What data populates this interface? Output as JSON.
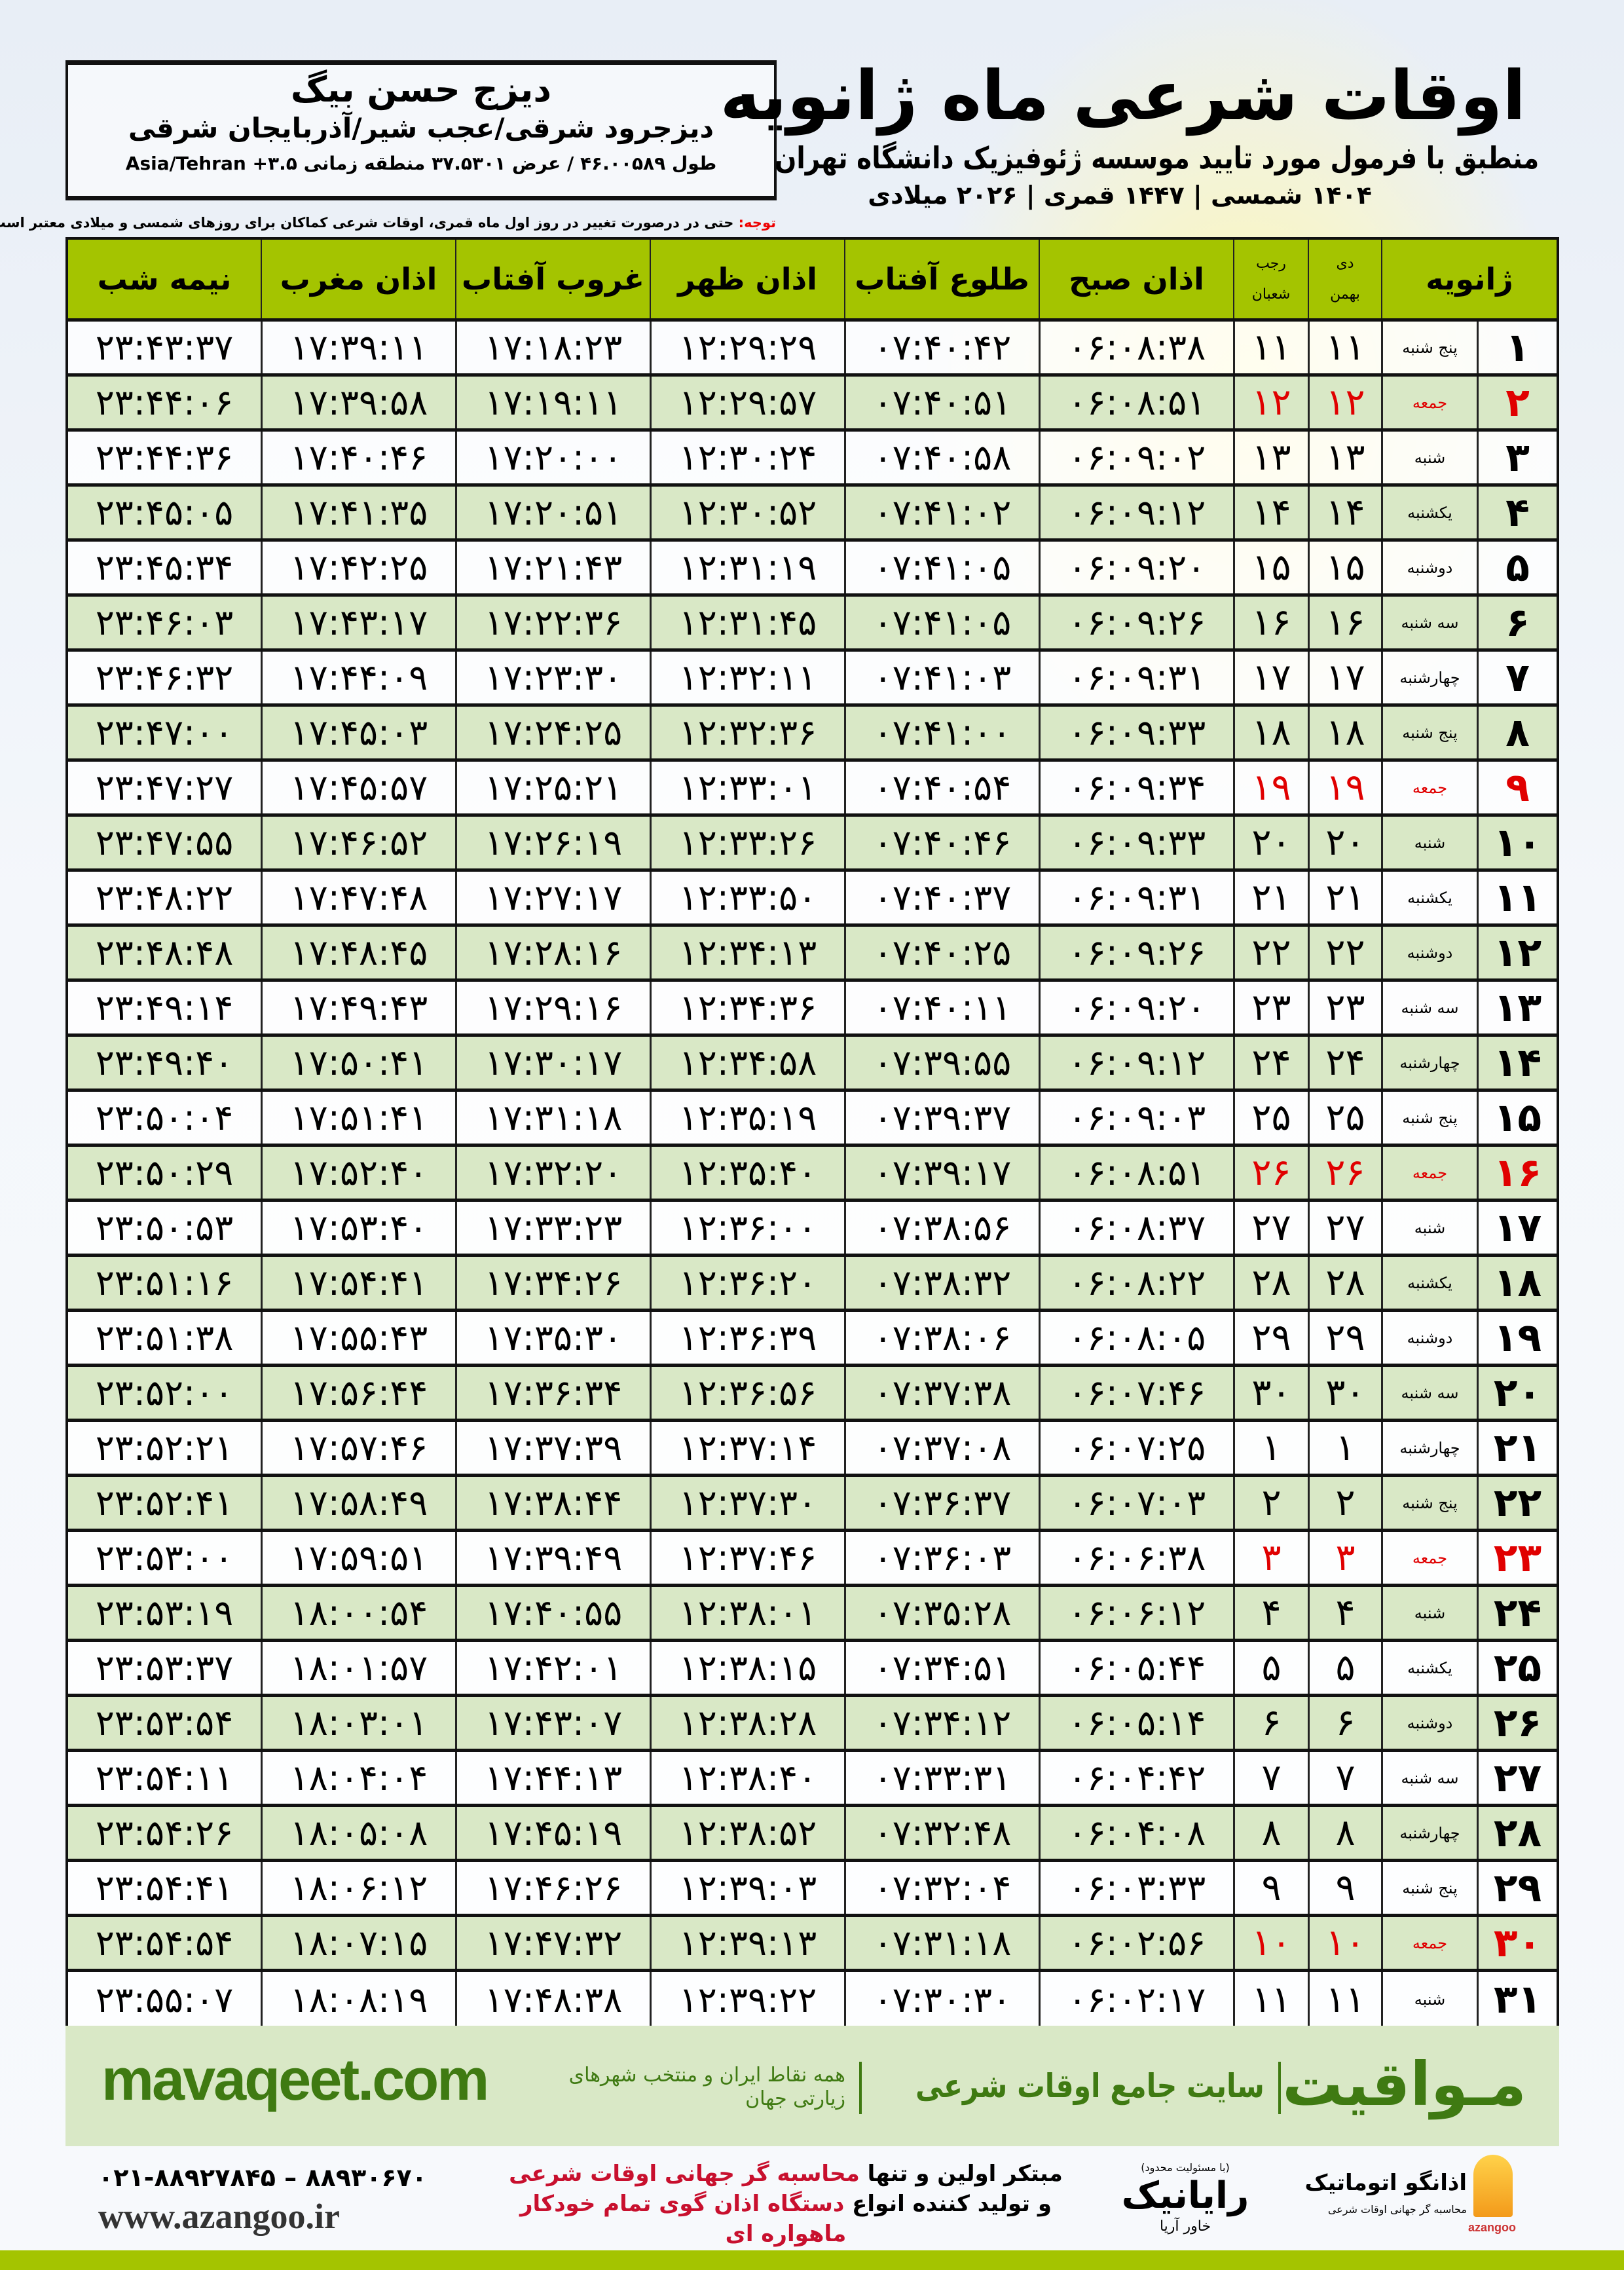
{
  "location": {
    "name": "دیزج حسن بیگ",
    "region": "دیزجرود شرقی/عجب شیر/آذربایجان شرقی",
    "coords": "طول ۴۶.۰۰۵۸۹ / عرض ۳۷.۵۳۰۱ منطقه زمانی ۳.۵+ Asia/Tehran"
  },
  "header": {
    "title": "اوقات شرعی ماه ژانویه",
    "subtitle": "منطبق با فرمول مورد تایید موسسه ژئوفیزیک دانشگاه تهران",
    "years": "۱۴۰۴ شمسی | ۱۴۴۷ قمری | ۲۰۲۶ میلادی"
  },
  "note": {
    "label": "توجه:",
    "text": " حتی در درصورت تغییر در روز اول ماه قمری، اوقات شرعی کماکان برای روزهای شمسی و میلادی معتبر است."
  },
  "columns": {
    "day": "ژانویه",
    "shamsi_top": "دی",
    "shamsi_bottom": "بهمن",
    "qamari_top": "رجب",
    "qamari_bottom": "شعبان",
    "fajr": "اذان صبح",
    "sunrise": "طلوع آفتاب",
    "dhuhr": "اذان ظهر",
    "sunset": "غروب آفتاب",
    "maghrib": "اذان مغرب",
    "midnight": "نیمه شب"
  },
  "colors": {
    "header_green": "#a4c400",
    "row_green": "#d9e8c6",
    "friday_red": "#e00000",
    "brand_green": "#3f7a12"
  },
  "rows": [
    {
      "day": "۱",
      "weekday": "پنج شنبه",
      "shamsi": "۱۱",
      "qamari": "۱۱",
      "fajr": "۰۶:۰۸:۳۸",
      "sunrise": "۰۷:۴۰:۴۲",
      "dhuhr": "۱۲:۲۹:۲۹",
      "sunset": "۱۷:۱۸:۲۳",
      "maghrib": "۱۷:۳۹:۱۱",
      "midnight": "۲۳:۴۳:۳۷",
      "holiday": false
    },
    {
      "day": "۲",
      "weekday": "جمعه",
      "shamsi": "۱۲",
      "qamari": "۱۲",
      "fajr": "۰۶:۰۸:۵۱",
      "sunrise": "۰۷:۴۰:۵۱",
      "dhuhr": "۱۲:۲۹:۵۷",
      "sunset": "۱۷:۱۹:۱۱",
      "maghrib": "۱۷:۳۹:۵۸",
      "midnight": "۲۳:۴۴:۰۶",
      "holiday": true
    },
    {
      "day": "۳",
      "weekday": "شنبه",
      "shamsi": "۱۳",
      "qamari": "۱۳",
      "fajr": "۰۶:۰۹:۰۲",
      "sunrise": "۰۷:۴۰:۵۸",
      "dhuhr": "۱۲:۳۰:۲۴",
      "sunset": "۱۷:۲۰:۰۰",
      "maghrib": "۱۷:۴۰:۴۶",
      "midnight": "۲۳:۴۴:۳۶",
      "holiday": false
    },
    {
      "day": "۴",
      "weekday": "یکشنبه",
      "shamsi": "۱۴",
      "qamari": "۱۴",
      "fajr": "۰۶:۰۹:۱۲",
      "sunrise": "۰۷:۴۱:۰۲",
      "dhuhr": "۱۲:۳۰:۵۲",
      "sunset": "۱۷:۲۰:۵۱",
      "maghrib": "۱۷:۴۱:۳۵",
      "midnight": "۲۳:۴۵:۰۵",
      "holiday": false
    },
    {
      "day": "۵",
      "weekday": "دوشنبه",
      "shamsi": "۱۵",
      "qamari": "۱۵",
      "fajr": "۰۶:۰۹:۲۰",
      "sunrise": "۰۷:۴۱:۰۵",
      "dhuhr": "۱۲:۳۱:۱۹",
      "sunset": "۱۷:۲۱:۴۳",
      "maghrib": "۱۷:۴۲:۲۵",
      "midnight": "۲۳:۴۵:۳۴",
      "holiday": false
    },
    {
      "day": "۶",
      "weekday": "سه شنبه",
      "shamsi": "۱۶",
      "qamari": "۱۶",
      "fajr": "۰۶:۰۹:۲۶",
      "sunrise": "۰۷:۴۱:۰۵",
      "dhuhr": "۱۲:۳۱:۴۵",
      "sunset": "۱۷:۲۲:۳۶",
      "maghrib": "۱۷:۴۳:۱۷",
      "midnight": "۲۳:۴۶:۰۳",
      "holiday": false
    },
    {
      "day": "۷",
      "weekday": "چهارشنبه",
      "shamsi": "۱۷",
      "qamari": "۱۷",
      "fajr": "۰۶:۰۹:۳۱",
      "sunrise": "۰۷:۴۱:۰۳",
      "dhuhr": "۱۲:۳۲:۱۱",
      "sunset": "۱۷:۲۳:۳۰",
      "maghrib": "۱۷:۴۴:۰۹",
      "midnight": "۲۳:۴۶:۳۲",
      "holiday": false
    },
    {
      "day": "۸",
      "weekday": "پنج شنبه",
      "shamsi": "۱۸",
      "qamari": "۱۸",
      "fajr": "۰۶:۰۹:۳۳",
      "sunrise": "۰۷:۴۱:۰۰",
      "dhuhr": "۱۲:۳۲:۳۶",
      "sunset": "۱۷:۲۴:۲۵",
      "maghrib": "۱۷:۴۵:۰۳",
      "midnight": "۲۳:۴۷:۰۰",
      "holiday": false
    },
    {
      "day": "۹",
      "weekday": "جمعه",
      "shamsi": "۱۹",
      "qamari": "۱۹",
      "fajr": "۰۶:۰۹:۳۴",
      "sunrise": "۰۷:۴۰:۵۴",
      "dhuhr": "۱۲:۳۳:۰۱",
      "sunset": "۱۷:۲۵:۲۱",
      "maghrib": "۱۷:۴۵:۵۷",
      "midnight": "۲۳:۴۷:۲۷",
      "holiday": true
    },
    {
      "day": "۱۰",
      "weekday": "شنبه",
      "shamsi": "۲۰",
      "qamari": "۲۰",
      "fajr": "۰۶:۰۹:۳۳",
      "sunrise": "۰۷:۴۰:۴۶",
      "dhuhr": "۱۲:۳۳:۲۶",
      "sunset": "۱۷:۲۶:۱۹",
      "maghrib": "۱۷:۴۶:۵۲",
      "midnight": "۲۳:۴۷:۵۵",
      "holiday": false
    },
    {
      "day": "۱۱",
      "weekday": "یکشنبه",
      "shamsi": "۲۱",
      "qamari": "۲۱",
      "fajr": "۰۶:۰۹:۳۱",
      "sunrise": "۰۷:۴۰:۳۷",
      "dhuhr": "۱۲:۳۳:۵۰",
      "sunset": "۱۷:۲۷:۱۷",
      "maghrib": "۱۷:۴۷:۴۸",
      "midnight": "۲۳:۴۸:۲۲",
      "holiday": false
    },
    {
      "day": "۱۲",
      "weekday": "دوشنبه",
      "shamsi": "۲۲",
      "qamari": "۲۲",
      "fajr": "۰۶:۰۹:۲۶",
      "sunrise": "۰۷:۴۰:۲۵",
      "dhuhr": "۱۲:۳۴:۱۳",
      "sunset": "۱۷:۲۸:۱۶",
      "maghrib": "۱۷:۴۸:۴۵",
      "midnight": "۲۳:۴۸:۴۸",
      "holiday": false
    },
    {
      "day": "۱۳",
      "weekday": "سه شنبه",
      "shamsi": "۲۳",
      "qamari": "۲۳",
      "fajr": "۰۶:۰۹:۲۰",
      "sunrise": "۰۷:۴۰:۱۱",
      "dhuhr": "۱۲:۳۴:۳۶",
      "sunset": "۱۷:۲۹:۱۶",
      "maghrib": "۱۷:۴۹:۴۳",
      "midnight": "۲۳:۴۹:۱۴",
      "holiday": false
    },
    {
      "day": "۱۴",
      "weekday": "چهارشنبه",
      "shamsi": "۲۴",
      "qamari": "۲۴",
      "fajr": "۰۶:۰۹:۱۲",
      "sunrise": "۰۷:۳۹:۵۵",
      "dhuhr": "۱۲:۳۴:۵۸",
      "sunset": "۱۷:۳۰:۱۷",
      "maghrib": "۱۷:۵۰:۴۱",
      "midnight": "۲۳:۴۹:۴۰",
      "holiday": false
    },
    {
      "day": "۱۵",
      "weekday": "پنج شنبه",
      "shamsi": "۲۵",
      "qamari": "۲۵",
      "fajr": "۰۶:۰۹:۰۳",
      "sunrise": "۰۷:۳۹:۳۷",
      "dhuhr": "۱۲:۳۵:۱۹",
      "sunset": "۱۷:۳۱:۱۸",
      "maghrib": "۱۷:۵۱:۴۱",
      "midnight": "۲۳:۵۰:۰۴",
      "holiday": false
    },
    {
      "day": "۱۶",
      "weekday": "جمعه",
      "shamsi": "۲۶",
      "qamari": "۲۶",
      "fajr": "۰۶:۰۸:۵۱",
      "sunrise": "۰۷:۳۹:۱۷",
      "dhuhr": "۱۲:۳۵:۴۰",
      "sunset": "۱۷:۳۲:۲۰",
      "maghrib": "۱۷:۵۲:۴۰",
      "midnight": "۲۳:۵۰:۲۹",
      "holiday": true
    },
    {
      "day": "۱۷",
      "weekday": "شنبه",
      "shamsi": "۲۷",
      "qamari": "۲۷",
      "fajr": "۰۶:۰۸:۳۷",
      "sunrise": "۰۷:۳۸:۵۶",
      "dhuhr": "۱۲:۳۶:۰۰",
      "sunset": "۱۷:۳۳:۲۳",
      "maghrib": "۱۷:۵۳:۴۰",
      "midnight": "۲۳:۵۰:۵۳",
      "holiday": false
    },
    {
      "day": "۱۸",
      "weekday": "یکشنبه",
      "shamsi": "۲۸",
      "qamari": "۲۸",
      "fajr": "۰۶:۰۸:۲۲",
      "sunrise": "۰۷:۳۸:۳۲",
      "dhuhr": "۱۲:۳۶:۲۰",
      "sunset": "۱۷:۳۴:۲۶",
      "maghrib": "۱۷:۵۴:۴۱",
      "midnight": "۲۳:۵۱:۱۶",
      "holiday": false
    },
    {
      "day": "۱۹",
      "weekday": "دوشنبه",
      "shamsi": "۲۹",
      "qamari": "۲۹",
      "fajr": "۰۶:۰۸:۰۵",
      "sunrise": "۰۷:۳۸:۰۶",
      "dhuhr": "۱۲:۳۶:۳۹",
      "sunset": "۱۷:۳۵:۳۰",
      "maghrib": "۱۷:۵۵:۴۳",
      "midnight": "۲۳:۵۱:۳۸",
      "holiday": false
    },
    {
      "day": "۲۰",
      "weekday": "سه شنبه",
      "shamsi": "۳۰",
      "qamari": "۳۰",
      "fajr": "۰۶:۰۷:۴۶",
      "sunrise": "۰۷:۳۷:۳۸",
      "dhuhr": "۱۲:۳۶:۵۶",
      "sunset": "۱۷:۳۶:۳۴",
      "maghrib": "۱۷:۵۶:۴۴",
      "midnight": "۲۳:۵۲:۰۰",
      "holiday": false
    },
    {
      "day": "۲۱",
      "weekday": "چهارشنبه",
      "shamsi": "۱",
      "qamari": "۱",
      "fajr": "۰۶:۰۷:۲۵",
      "sunrise": "۰۷:۳۷:۰۸",
      "dhuhr": "۱۲:۳۷:۱۴",
      "sunset": "۱۷:۳۷:۳۹",
      "maghrib": "۱۷:۵۷:۴۶",
      "midnight": "۲۳:۵۲:۲۱",
      "holiday": false
    },
    {
      "day": "۲۲",
      "weekday": "پنج شنبه",
      "shamsi": "۲",
      "qamari": "۲",
      "fajr": "۰۶:۰۷:۰۳",
      "sunrise": "۰۷:۳۶:۳۷",
      "dhuhr": "۱۲:۳۷:۳۰",
      "sunset": "۱۷:۳۸:۴۴",
      "maghrib": "۱۷:۵۸:۴۹",
      "midnight": "۲۳:۵۲:۴۱",
      "holiday": false
    },
    {
      "day": "۲۳",
      "weekday": "جمعه",
      "shamsi": "۳",
      "qamari": "۳",
      "fajr": "۰۶:۰۶:۳۸",
      "sunrise": "۰۷:۳۶:۰۳",
      "dhuhr": "۱۲:۳۷:۴۶",
      "sunset": "۱۷:۳۹:۴۹",
      "maghrib": "۱۷:۵۹:۵۱",
      "midnight": "۲۳:۵۳:۰۰",
      "holiday": true
    },
    {
      "day": "۲۴",
      "weekday": "شنبه",
      "shamsi": "۴",
      "qamari": "۴",
      "fajr": "۰۶:۰۶:۱۲",
      "sunrise": "۰۷:۳۵:۲۸",
      "dhuhr": "۱۲:۳۸:۰۱",
      "sunset": "۱۷:۴۰:۵۵",
      "maghrib": "۱۸:۰۰:۵۴",
      "midnight": "۲۳:۵۳:۱۹",
      "holiday": false
    },
    {
      "day": "۲۵",
      "weekday": "یکشنبه",
      "shamsi": "۵",
      "qamari": "۵",
      "fajr": "۰۶:۰۵:۴۴",
      "sunrise": "۰۷:۳۴:۵۱",
      "dhuhr": "۱۲:۳۸:۱۵",
      "sunset": "۱۷:۴۲:۰۱",
      "maghrib": "۱۸:۰۱:۵۷",
      "midnight": "۲۳:۵۳:۳۷",
      "holiday": false
    },
    {
      "day": "۲۶",
      "weekday": "دوشنبه",
      "shamsi": "۶",
      "qamari": "۶",
      "fajr": "۰۶:۰۵:۱۴",
      "sunrise": "۰۷:۳۴:۱۲",
      "dhuhr": "۱۲:۳۸:۲۸",
      "sunset": "۱۷:۴۳:۰۷",
      "maghrib": "۱۸:۰۳:۰۱",
      "midnight": "۲۳:۵۳:۵۴",
      "holiday": false
    },
    {
      "day": "۲۷",
      "weekday": "سه شنبه",
      "shamsi": "۷",
      "qamari": "۷",
      "fajr": "۰۶:۰۴:۴۲",
      "sunrise": "۰۷:۳۳:۳۱",
      "dhuhr": "۱۲:۳۸:۴۰",
      "sunset": "۱۷:۴۴:۱۳",
      "maghrib": "۱۸:۰۴:۰۴",
      "midnight": "۲۳:۵۴:۱۱",
      "holiday": false
    },
    {
      "day": "۲۸",
      "weekday": "چهارشنبه",
      "shamsi": "۸",
      "qamari": "۸",
      "fajr": "۰۶:۰۴:۰۸",
      "sunrise": "۰۷:۳۲:۴۸",
      "dhuhr": "۱۲:۳۸:۵۲",
      "sunset": "۱۷:۴۵:۱۹",
      "maghrib": "۱۸:۰۵:۰۸",
      "midnight": "۲۳:۵۴:۲۶",
      "holiday": false
    },
    {
      "day": "۲۹",
      "weekday": "پنج شنبه",
      "shamsi": "۹",
      "qamari": "۹",
      "fajr": "۰۶:۰۳:۳۳",
      "sunrise": "۰۷:۳۲:۰۴",
      "dhuhr": "۱۲:۳۹:۰۳",
      "sunset": "۱۷:۴۶:۲۶",
      "maghrib": "۱۸:۰۶:۱۲",
      "midnight": "۲۳:۵۴:۴۱",
      "holiday": false
    },
    {
      "day": "۳۰",
      "weekday": "جمعه",
      "shamsi": "۱۰",
      "qamari": "۱۰",
      "fajr": "۰۶:۰۲:۵۶",
      "sunrise": "۰۷:۳۱:۱۸",
      "dhuhr": "۱۲:۳۹:۱۳",
      "sunset": "۱۷:۴۷:۳۲",
      "maghrib": "۱۸:۰۷:۱۵",
      "midnight": "۲۳:۵۴:۵۴",
      "holiday": true
    },
    {
      "day": "۳۱",
      "weekday": "شنبه",
      "shamsi": "۱۱",
      "qamari": "۱۱",
      "fajr": "۰۶:۰۲:۱۷",
      "sunrise": "۰۷:۳۰:۳۰",
      "dhuhr": "۱۲:۳۹:۲۲",
      "sunset": "۱۷:۴۸:۳۸",
      "maghrib": "۱۸:۰۸:۱۹",
      "midnight": "۲۳:۵۵:۰۷",
      "holiday": false
    }
  ],
  "banner": {
    "brand": "مـواقیت",
    "tagline": "سایت جامع اوقات شرعی",
    "tagline2": "همه نقاط ایران و منتخب شهرهای زیارتی جهان",
    "url": "mavaqeet.com"
  },
  "footer": {
    "phone": "۰۲۱-۸۸۹۲۷۸۴۵ – ۸۸۹۳۰۶۷۰",
    "site": "www.azangoo.ir",
    "promo_line1_a": "مبتکر اولین و تنها ",
    "promo_line1_b": "محاسبه گر جهانی اوقات شرعی",
    "promo_line2_a": "و تولید کننده انواع ",
    "promo_line2_b": "دستگاه اذان گوی تمام خودکار ماهواره ای",
    "rayanik_note": "(با مسئولیت محدود)",
    "rayanik_name": "رایانیک",
    "rayanik_sub": "خاور آریا",
    "azangoo_name": "اذانگو اتوماتیک",
    "azangoo_sub": "محاسبه گر جهانی اوقات شرعی",
    "azangoo_latin": "azangoo"
  }
}
